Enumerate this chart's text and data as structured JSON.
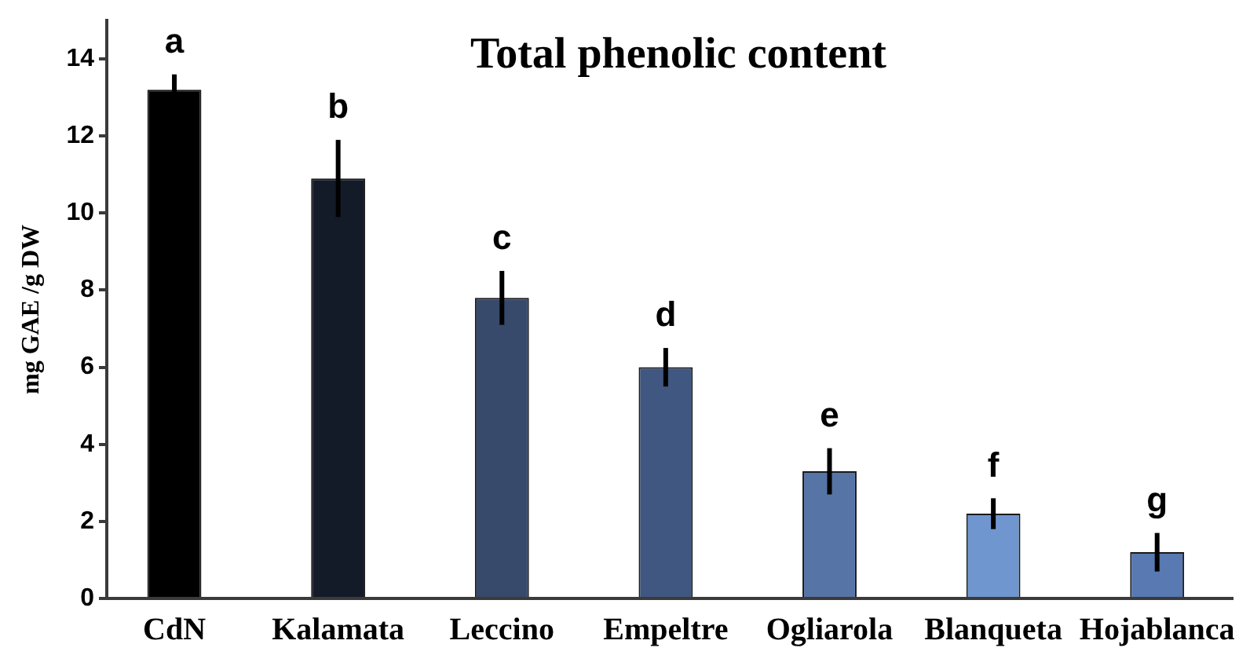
{
  "chart_data": {
    "type": "bar",
    "title": "Total phenolic content",
    "ylabel": "mg GAE /g DW",
    "categories": [
      "CdN",
      "Kalamata",
      "Leccino",
      "Empeltre",
      "Ogliarola",
      "Blanqueta",
      "Hojablanca"
    ],
    "values": [
      13.2,
      10.9,
      7.8,
      6.0,
      3.3,
      2.2,
      1.2
    ],
    "colors": [
      "#000000",
      "#131a28",
      "#374a6b",
      "#3f5781",
      "#5674a6",
      "#7096cf",
      "#5879b1"
    ],
    "errors": [
      0.4,
      1.0,
      0.7,
      0.5,
      0.6,
      0.4,
      0.5
    ],
    "value_labels": [
      "a",
      "b",
      "c",
      "d",
      "e",
      "f",
      "g"
    ],
    "ylim": [
      0,
      15
    ],
    "yticks": [
      0,
      2,
      4,
      6,
      8,
      10,
      12,
      14
    ]
  }
}
